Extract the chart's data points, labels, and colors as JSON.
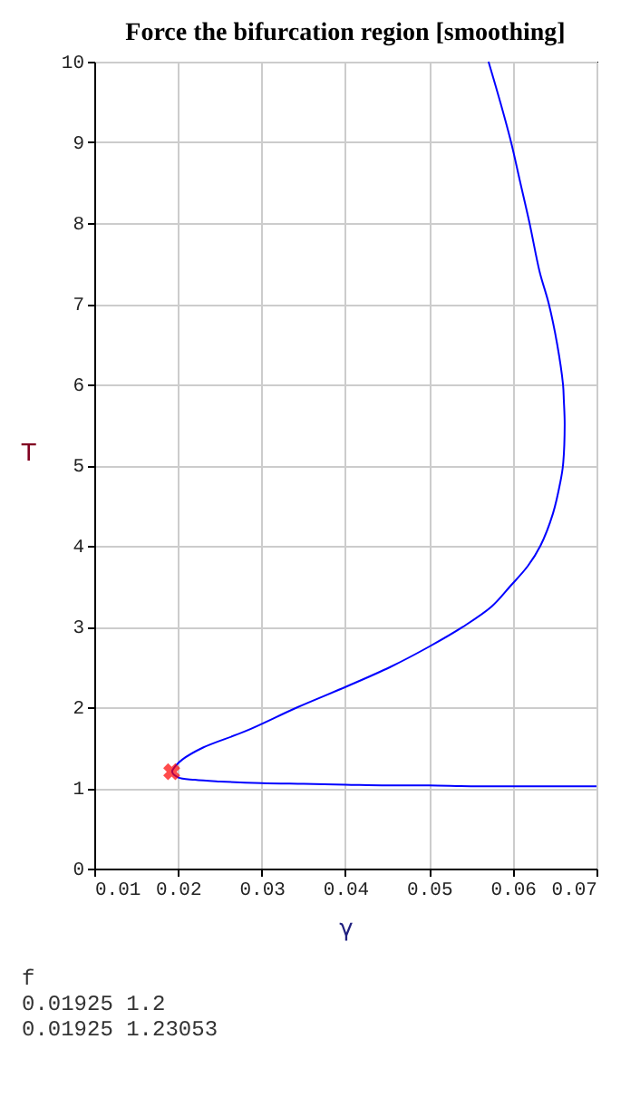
{
  "chart_data": {
    "type": "line",
    "title": "Force the bifurcation region [smoothing]",
    "xlabel": "γ",
    "ylabel": "T",
    "xlim": [
      0.01,
      0.07
    ],
    "ylim": [
      0,
      10
    ],
    "xticks": [
      0.01,
      0.02,
      0.03,
      0.04,
      0.05,
      0.06,
      0.07
    ],
    "yticks": [
      0,
      1,
      2,
      3,
      4,
      5,
      6,
      7,
      8,
      9,
      10
    ],
    "grid": true,
    "annotations": [
      "f",
      "0.01925   1.2",
      "0.01925 1.23053"
    ],
    "series": [
      {
        "line_style": "solid",
        "color": "#0000ff",
        "x": [
          0.07,
          0.065,
          0.06,
          0.055,
          0.05,
          0.045,
          0.04,
          0.035,
          0.03,
          0.025,
          0.022,
          0.02,
          0.0193,
          0.0197,
          0.0205,
          0.023,
          0.028,
          0.0343,
          0.04,
          0.0454,
          0.05,
          0.0541,
          0.0575,
          0.0597,
          0.0618,
          0.0633,
          0.0648,
          0.0657,
          0.066,
          0.0662,
          0.0661,
          0.066,
          0.0653,
          0.0643,
          0.0632,
          0.062,
          0.0609,
          0.0598,
          0.0585,
          0.0571
        ],
        "values": [
          1.02,
          1.02,
          1.02,
          1.02,
          1.03,
          1.03,
          1.04,
          1.05,
          1.06,
          1.08,
          1.1,
          1.13,
          1.2,
          1.27,
          1.35,
          1.5,
          1.7,
          2.0,
          2.25,
          2.5,
          2.75,
          3.0,
          3.25,
          3.5,
          3.75,
          4.0,
          4.4,
          4.8,
          5.0,
          5.5,
          5.8,
          6.0,
          6.5,
          7.0,
          7.4,
          8.0,
          8.5,
          9.0,
          9.5,
          10.0
        ]
      },
      {
        "type": "scatter",
        "color": "#ff0000",
        "marker": "cross",
        "x": [
          0.01925
        ],
        "values": [
          1.2
        ]
      }
    ]
  }
}
